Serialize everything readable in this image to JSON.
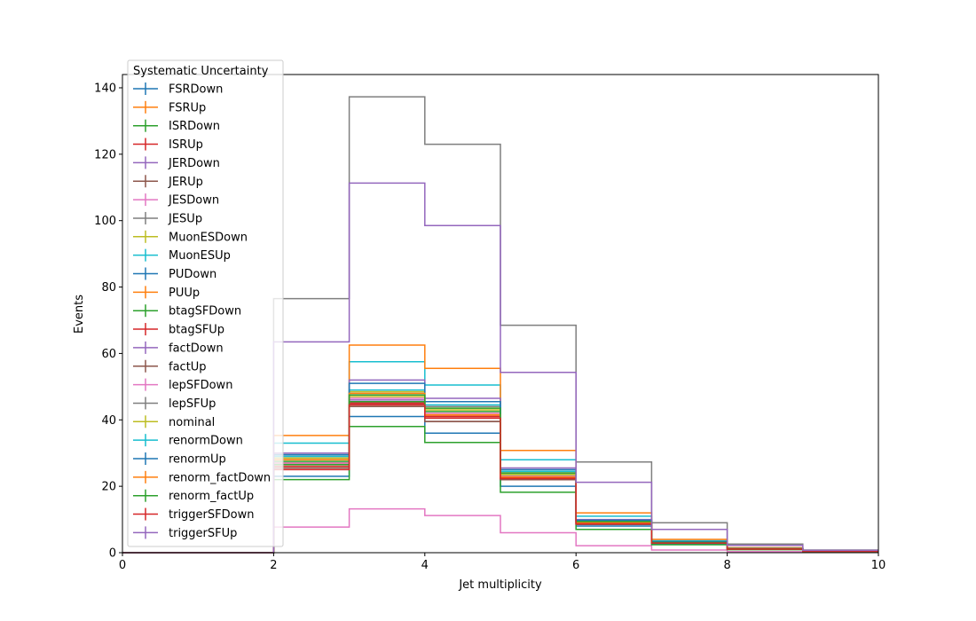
{
  "chart_data": {
    "type": "line",
    "style": "step-histogram",
    "title": "",
    "xlabel": "Jet multiplicity",
    "ylabel": "Events",
    "xlim": [
      0,
      10
    ],
    "ylim": [
      0,
      144
    ],
    "xticks": [
      "0",
      "2",
      "4",
      "6",
      "8",
      "10"
    ],
    "yticks": [
      "0",
      "20",
      "40",
      "60",
      "80",
      "100",
      "120",
      "140"
    ],
    "grid": false,
    "legend": {
      "title": "Systematic Uncertainty",
      "placement": "upper-left"
    },
    "bin_edges": [
      0,
      1,
      2,
      3,
      4,
      5,
      6,
      7,
      8,
      9,
      10
    ],
    "series": [
      {
        "name": "FSRDown",
        "color": "#1f77b4",
        "values": [
          0,
          0,
          28.0,
          45.0,
          42.0,
          23.0,
          9.0,
          3.0,
          1.2,
          0.4
        ]
      },
      {
        "name": "FSRUp",
        "color": "#ff7f0e",
        "values": [
          0,
          0,
          27.0,
          44.5,
          41.5,
          22.5,
          8.8,
          3.0,
          1.1,
          0.4
        ]
      },
      {
        "name": "ISRDown",
        "color": "#2ca02c",
        "values": [
          0,
          0,
          27.5,
          45.5,
          42.5,
          23.5,
          9.2,
          3.1,
          1.2,
          0.4
        ]
      },
      {
        "name": "ISRUp",
        "color": "#d62728",
        "values": [
          0,
          0,
          28.5,
          45.0,
          41.0,
          22.0,
          8.6,
          2.9,
          1.1,
          0.4
        ]
      },
      {
        "name": "JERDown",
        "color": "#9467bd",
        "values": [
          0,
          0,
          28.0,
          46.0,
          42.0,
          23.0,
          9.0,
          3.0,
          1.2,
          0.4
        ]
      },
      {
        "name": "JERUp",
        "color": "#8c564b",
        "values": [
          0,
          0,
          27.0,
          44.0,
          39.5,
          22.0,
          8.5,
          2.8,
          1.1,
          0.4
        ]
      },
      {
        "name": "JESDown",
        "color": "#e377c2",
        "values": [
          0,
          0,
          7.7,
          13.2,
          11.2,
          6.0,
          2.1,
          0.8,
          0.3,
          0.1
        ]
      },
      {
        "name": "JESUp",
        "color": "#7f7f7f",
        "values": [
          0,
          0,
          76.5,
          137.3,
          123.0,
          68.5,
          27.3,
          9.0,
          2.6,
          0.8
        ]
      },
      {
        "name": "MuonESDown",
        "color": "#bcbd22",
        "values": [
          0,
          0,
          28.0,
          47.0,
          43.5,
          24.0,
          9.4,
          3.2,
          1.2,
          0.4
        ]
      },
      {
        "name": "MuonESUp",
        "color": "#17becf",
        "values": [
          0,
          0,
          33.0,
          57.5,
          50.5,
          28.0,
          11.0,
          3.6,
          1.4,
          0.5
        ]
      },
      {
        "name": "PUDown",
        "color": "#1f77b4",
        "values": [
          0,
          0,
          23.0,
          41.0,
          36.0,
          20.0,
          8.0,
          2.6,
          1.0,
          0.3
        ]
      },
      {
        "name": "PUUp",
        "color": "#ff7f0e",
        "values": [
          0,
          0,
          35.3,
          62.5,
          55.5,
          30.8,
          12.0,
          4.0,
          1.5,
          0.5
        ]
      },
      {
        "name": "btagSFDown",
        "color": "#2ca02c",
        "values": [
          0,
          0,
          22.0,
          38.0,
          33.2,
          18.2,
          7.0,
          2.4,
          0.9,
          0.3
        ]
      },
      {
        "name": "btagSFUp",
        "color": "#d62728",
        "values": [
          0,
          0,
          26.0,
          45.0,
          41.0,
          22.5,
          8.8,
          3.0,
          1.1,
          0.4
        ]
      },
      {
        "name": "factDown",
        "color": "#9467bd",
        "values": [
          0,
          0,
          30.0,
          52.0,
          46.5,
          25.5,
          10.0,
          3.3,
          1.3,
          0.4
        ]
      },
      {
        "name": "factUp",
        "color": "#8c564b",
        "values": [
          0,
          0,
          25.5,
          44.5,
          39.5,
          22.0,
          8.5,
          2.9,
          1.1,
          0.4
        ]
      },
      {
        "name": "lepSFDown",
        "color": "#e377c2",
        "values": [
          0,
          0,
          27.0,
          46.5,
          42.0,
          23.0,
          9.0,
          3.0,
          1.2,
          0.4
        ]
      },
      {
        "name": "lepSFUp",
        "color": "#7f7f7f",
        "values": [
          0,
          0,
          29.5,
          48.0,
          44.0,
          24.0,
          9.5,
          3.2,
          1.2,
          0.4
        ]
      },
      {
        "name": "nominal",
        "color": "#bcbd22",
        "values": [
          0,
          0,
          28.5,
          48.5,
          43.0,
          23.5,
          9.2,
          3.1,
          1.2,
          0.4
        ]
      },
      {
        "name": "renormDown",
        "color": "#17becf",
        "values": [
          0,
          0,
          29.0,
          49.0,
          44.5,
          24.5,
          9.6,
          3.2,
          1.2,
          0.4
        ]
      },
      {
        "name": "renormUp",
        "color": "#1f77b4",
        "values": [
          0,
          0,
          29.5,
          51.0,
          45.5,
          25.0,
          9.8,
          3.3,
          1.3,
          0.4
        ]
      },
      {
        "name": "renorm_factDown",
        "color": "#ff7f0e",
        "values": [
          0,
          0,
          28.0,
          48.0,
          41.5,
          22.8,
          9.0,
          3.0,
          1.2,
          0.4
        ]
      },
      {
        "name": "renorm_factUp",
        "color": "#2ca02c",
        "values": [
          0,
          0,
          26.5,
          47.5,
          43.5,
          24.0,
          9.4,
          3.1,
          1.2,
          0.4
        ]
      },
      {
        "name": "triggerSFDown",
        "color": "#d62728",
        "values": [
          0,
          0,
          25.0,
          44.5,
          40.5,
          22.3,
          8.7,
          2.9,
          1.1,
          0.4
        ]
      },
      {
        "name": "triggerSFUp",
        "color": "#9467bd",
        "values": [
          0,
          0,
          63.5,
          111.3,
          98.5,
          54.3,
          21.2,
          7.0,
          2.2,
          0.7
        ]
      }
    ]
  }
}
